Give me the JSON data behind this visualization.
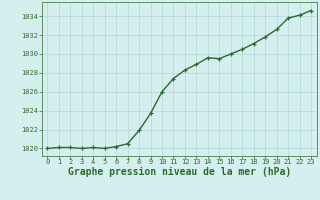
{
  "x": [
    0,
    1,
    2,
    3,
    4,
    5,
    6,
    7,
    8,
    9,
    10,
    11,
    12,
    13,
    14,
    15,
    16,
    17,
    18,
    19,
    20,
    21,
    22,
    23
  ],
  "y": [
    1020.0,
    1020.1,
    1020.1,
    1020.0,
    1020.1,
    1020.0,
    1020.2,
    1020.5,
    1021.9,
    1023.7,
    1026.0,
    1027.4,
    1028.3,
    1028.9,
    1029.6,
    1029.5,
    1030.0,
    1030.5,
    1031.1,
    1031.8,
    1032.6,
    1033.8,
    1034.1,
    1034.6
  ],
  "line_color": "#2d6a2d",
  "marker_color": "#2d6a2d",
  "bg_color": "#d5efef",
  "grid_color": "#b0d8d8",
  "title": "Graphe pression niveau de la mer (hPa)",
  "title_color": "#2d6a2d",
  "ylim_min": 1019.2,
  "ylim_max": 1035.5,
  "yticks": [
    1020,
    1022,
    1024,
    1026,
    1028,
    1030,
    1032,
    1034
  ],
  "xlim_min": -0.5,
  "xlim_max": 23.5,
  "xticks": [
    0,
    1,
    2,
    3,
    4,
    5,
    6,
    7,
    8,
    9,
    10,
    11,
    12,
    13,
    14,
    15,
    16,
    17,
    18,
    19,
    20,
    21,
    22,
    23
  ],
  "tick_fontsize": 5.0,
  "title_fontsize": 7.0,
  "linewidth": 1.0,
  "markersize": 3.5,
  "marker": "+"
}
